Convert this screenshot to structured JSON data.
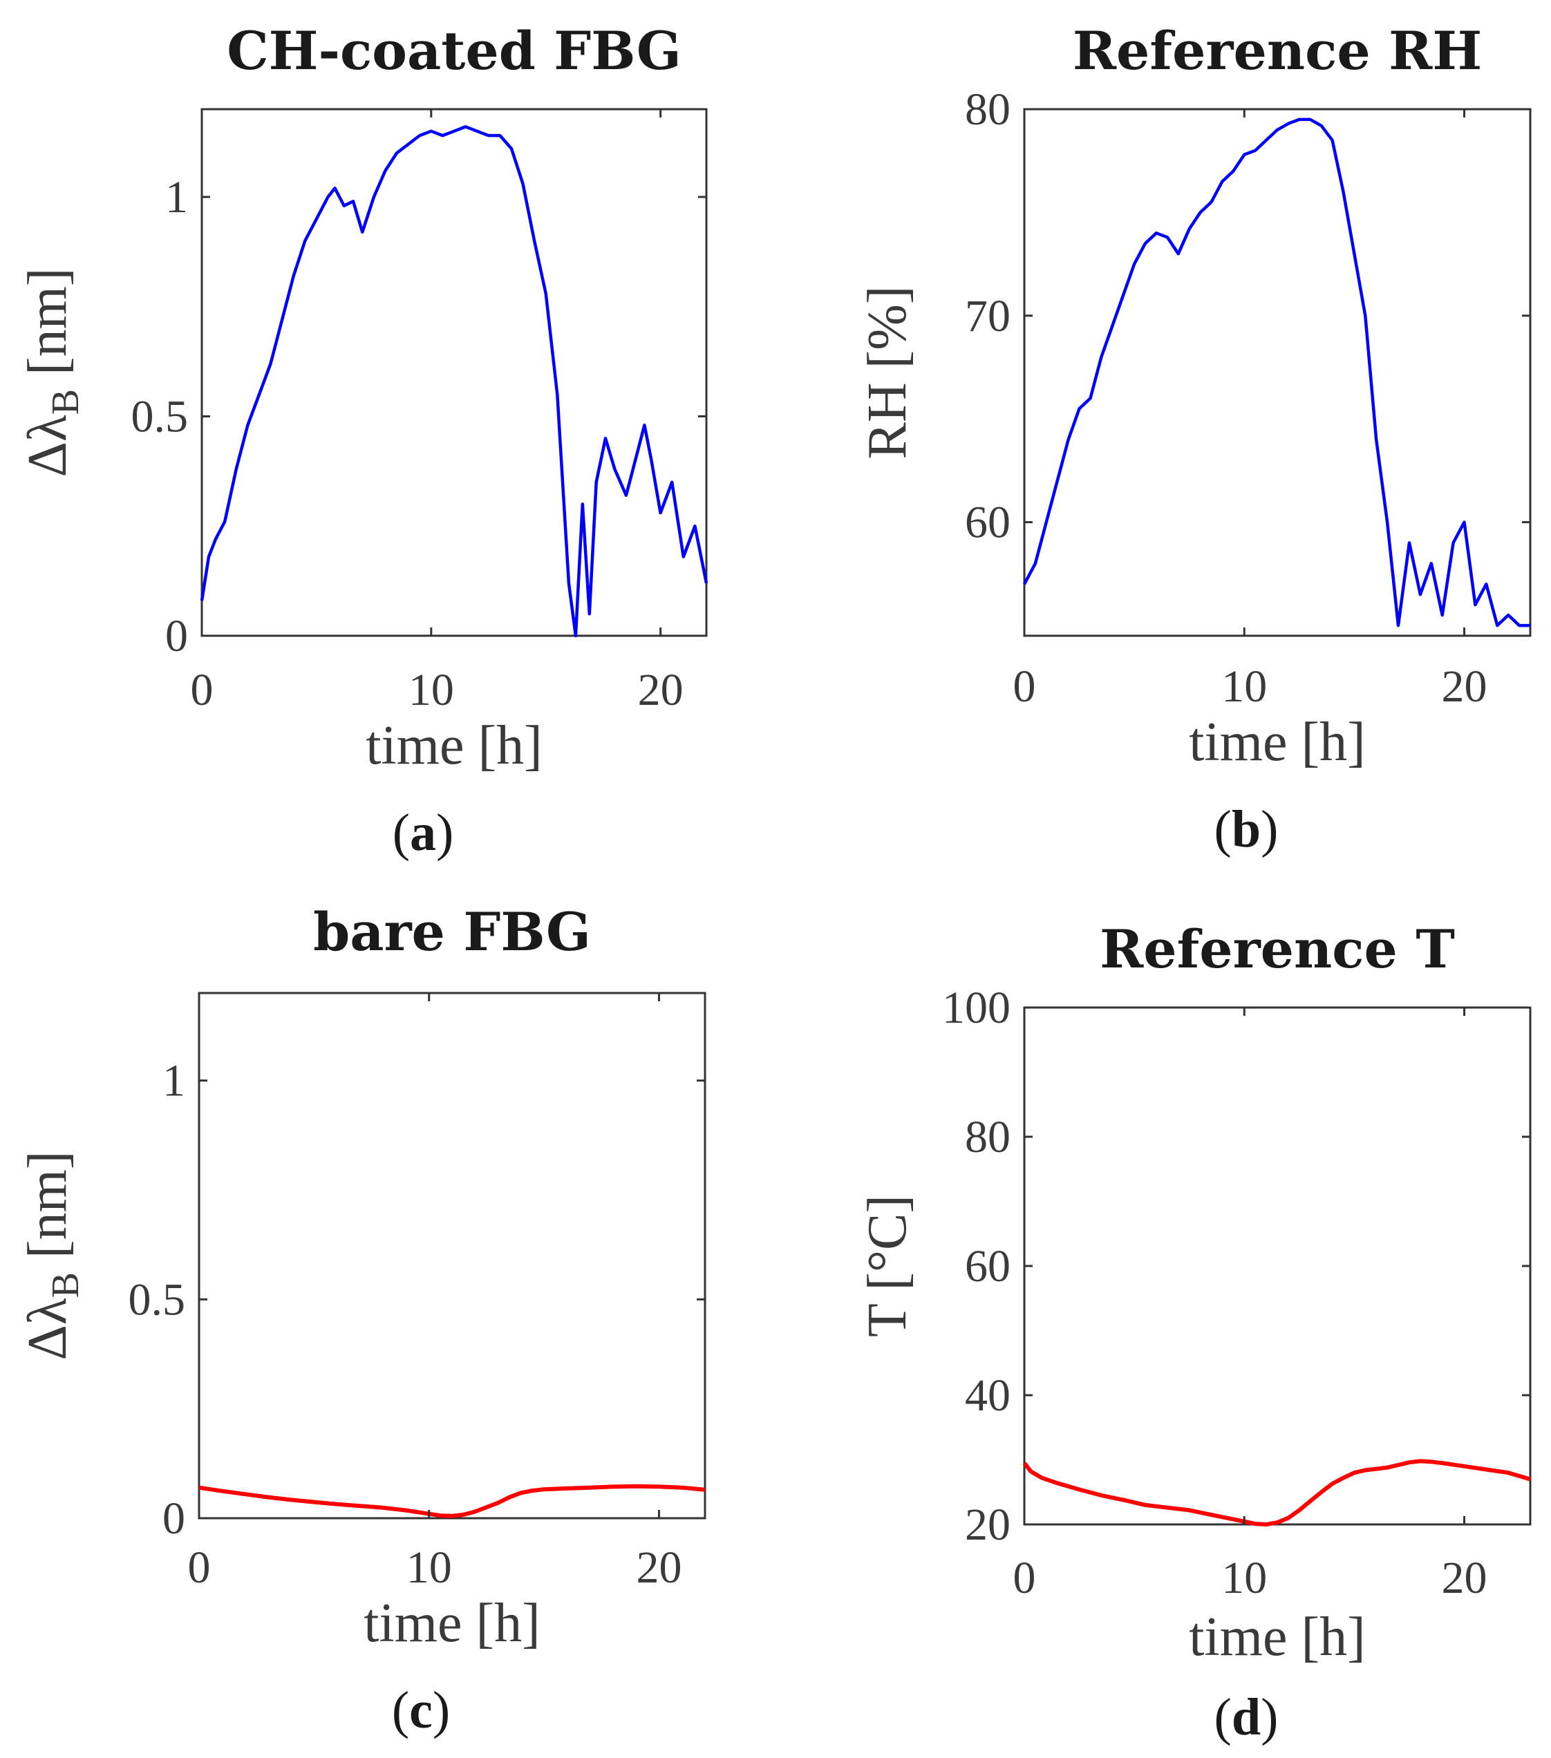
{
  "chart_data": [
    {
      "id": "a",
      "type": "line",
      "title": "CH-coated FBG",
      "xlabel": "time [h]",
      "ylabel_main": "Δλ",
      "ylabel_sub": "B",
      "ylabel_unit": " [nm]",
      "subfigure": "a",
      "xlim": [
        0,
        22
      ],
      "ylim": [
        0,
        1.2
      ],
      "xticks": [
        {
          "value": 0,
          "label": "0"
        },
        {
          "value": 10,
          "label": "10"
        },
        {
          "value": 20,
          "label": "20"
        }
      ],
      "yticks": [
        {
          "value": 0,
          "label": "0"
        },
        {
          "value": 0.5,
          "label": "0.5"
        },
        {
          "value": 1,
          "label": "1"
        }
      ],
      "color": "#0000ff",
      "series": [
        {
          "name": "CH-coated FBG",
          "x": [
            0,
            0.3,
            0.6,
            1,
            1.5,
            2,
            2.5,
            3,
            3.5,
            4,
            4.5,
            5,
            5.5,
            5.8,
            6.2,
            6.6,
            7,
            7.5,
            8,
            8.5,
            9,
            9.5,
            10,
            10.5,
            11,
            11.5,
            12,
            12.5,
            13,
            13.5,
            14,
            14.5,
            15,
            15.5,
            16,
            16.3,
            16.6,
            16.9,
            17.2,
            17.6,
            18,
            18.5,
            19,
            19.3,
            19.6,
            20,
            20.5,
            21,
            21.5,
            22
          ],
          "y": [
            0.08,
            0.18,
            0.22,
            0.26,
            0.38,
            0.48,
            0.55,
            0.62,
            0.72,
            0.82,
            0.9,
            0.95,
            1.0,
            1.02,
            0.98,
            0.99,
            0.92,
            1.0,
            1.06,
            1.1,
            1.12,
            1.14,
            1.15,
            1.14,
            1.15,
            1.16,
            1.15,
            1.14,
            1.14,
            1.11,
            1.03,
            0.9,
            0.78,
            0.55,
            0.12,
            0.0,
            0.3,
            0.05,
            0.35,
            0.45,
            0.38,
            0.32,
            0.42,
            0.48,
            0.4,
            0.28,
            0.35,
            0.18,
            0.25,
            0.12
          ]
        }
      ]
    },
    {
      "id": "b",
      "type": "line",
      "title": "Reference RH",
      "xlabel": "time [h]",
      "ylabel_main": "RH [%]",
      "ylabel_sub": "",
      "ylabel_unit": "",
      "subfigure": "b",
      "xlim": [
        0,
        23
      ],
      "ylim": [
        54.5,
        80
      ],
      "xticks": [
        {
          "value": 0,
          "label": "0"
        },
        {
          "value": 10,
          "label": "10"
        },
        {
          "value": 20,
          "label": "20"
        }
      ],
      "yticks": [
        {
          "value": 60,
          "label": "60"
        },
        {
          "value": 70,
          "label": "70"
        },
        {
          "value": 80,
          "label": "80"
        }
      ],
      "color": "#0000ff",
      "series": [
        {
          "name": "RH",
          "x": [
            0,
            0.5,
            1,
            1.5,
            2,
            2.5,
            3,
            3.5,
            4,
            4.5,
            5,
            5.5,
            6,
            6.5,
            7,
            7.5,
            8,
            8.5,
            9,
            9.5,
            10,
            10.5,
            11,
            11.5,
            12,
            12.5,
            13,
            13.5,
            14,
            14.5,
            15,
            15.5,
            16,
            16.5,
            17,
            17.5,
            18,
            18.5,
            19,
            19.5,
            20,
            20.5,
            21,
            21.5,
            22,
            22.5,
            23
          ],
          "y": [
            57,
            58,
            60,
            62,
            64,
            65.5,
            66,
            68,
            69.5,
            71,
            72.5,
            73.5,
            74,
            73.8,
            73,
            74.2,
            75,
            75.5,
            76.5,
            77,
            77.8,
            78,
            78.5,
            79,
            79.3,
            79.5,
            79.5,
            79.2,
            78.5,
            76,
            73,
            70,
            64,
            60,
            55,
            59,
            56.5,
            58,
            55.5,
            59,
            60,
            56,
            57,
            55,
            55.5,
            55,
            55
          ]
        }
      ]
    },
    {
      "id": "c",
      "type": "line",
      "title": "bare FBG",
      "xlabel": "time [h]",
      "ylabel_main": "Δλ",
      "ylabel_sub": "B",
      "ylabel_unit": " [nm]",
      "subfigure": "c",
      "xlim": [
        0,
        22
      ],
      "ylim": [
        0,
        1.2
      ],
      "xticks": [
        {
          "value": 0,
          "label": "0"
        },
        {
          "value": 10,
          "label": "10"
        },
        {
          "value": 20,
          "label": "20"
        }
      ],
      "yticks": [
        {
          "value": 0,
          "label": "0"
        },
        {
          "value": 0.5,
          "label": "0.5"
        },
        {
          "value": 1,
          "label": "1"
        }
      ],
      "color": "#ff0000",
      "series": [
        {
          "name": "bare FBG",
          "x": [
            0,
            1,
            2,
            3,
            4,
            5,
            6,
            7,
            8,
            9,
            10,
            10.5,
            11,
            11.5,
            12,
            12.5,
            13,
            13.5,
            14,
            14.5,
            15,
            16,
            17,
            18,
            19,
            20,
            21,
            22
          ],
          "y": [
            0.07,
            0.062,
            0.055,
            0.048,
            0.042,
            0.037,
            0.032,
            0.028,
            0.024,
            0.018,
            0.01,
            0.006,
            0.005,
            0.008,
            0.015,
            0.025,
            0.035,
            0.048,
            0.058,
            0.063,
            0.066,
            0.068,
            0.07,
            0.072,
            0.073,
            0.072,
            0.07,
            0.065
          ]
        }
      ]
    },
    {
      "id": "d",
      "type": "line",
      "title": "Reference T",
      "xlabel": "time [h]",
      "ylabel_main": "T [°C]",
      "ylabel_sub": "",
      "ylabel_unit": "",
      "subfigure": "d",
      "xlim": [
        0,
        23
      ],
      "ylim": [
        20,
        100
      ],
      "xticks": [
        {
          "value": 0,
          "label": "0"
        },
        {
          "value": 10,
          "label": "10"
        },
        {
          "value": 20,
          "label": "20"
        }
      ],
      "yticks": [
        {
          "value": 20,
          "label": "20"
        },
        {
          "value": 40,
          "label": "40"
        },
        {
          "value": 60,
          "label": "60"
        },
        {
          "value": 80,
          "label": "80"
        },
        {
          "value": 100,
          "label": "100"
        }
      ],
      "color": "#ff0000",
      "series": [
        {
          "name": "T",
          "x": [
            0,
            0.3,
            0.8,
            1.5,
            2.5,
            3.5,
            4.5,
            5.5,
            6.5,
            7.5,
            8.5,
            9.5,
            10.5,
            11,
            11.5,
            12,
            12.5,
            13,
            13.5,
            14,
            14.5,
            15,
            15.5,
            16,
            16.5,
            17,
            17.5,
            18,
            18.5,
            19,
            20,
            21,
            22,
            23
          ],
          "y": [
            29.5,
            28.2,
            27.2,
            26.4,
            25.4,
            24.5,
            23.8,
            23.0,
            22.6,
            22.2,
            21.5,
            20.8,
            20.1,
            20.0,
            20.3,
            21.0,
            22.2,
            23.6,
            25.0,
            26.3,
            27.2,
            28.0,
            28.4,
            28.6,
            28.8,
            29.2,
            29.6,
            29.8,
            29.7,
            29.5,
            29.0,
            28.5,
            28.0,
            27.0
          ]
        }
      ]
    }
  ]
}
